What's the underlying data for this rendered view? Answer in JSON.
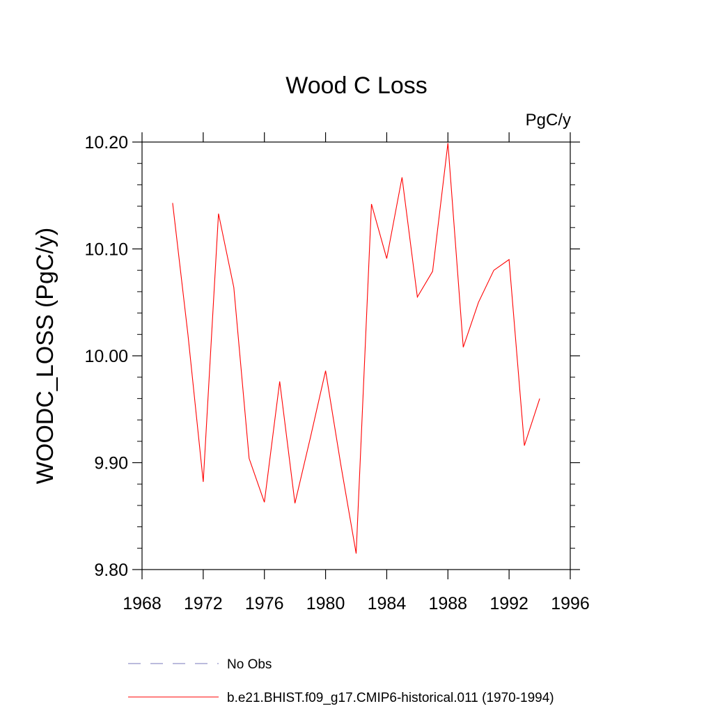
{
  "chart_data": {
    "type": "line",
    "title": "Wood C Loss",
    "units": "PgC/y",
    "ylabel": "WOODC_LOSS  (PgC/y)",
    "xlim": [
      1968,
      1996
    ],
    "ylim": [
      9.8,
      10.2
    ],
    "x_ticks": [
      1968,
      1972,
      1976,
      1980,
      1984,
      1988,
      1992,
      1996
    ],
    "x_tick_labels": [
      "1968",
      "1972",
      "1976",
      "1980",
      "1984",
      "1988",
      "1992",
      "1996"
    ],
    "y_ticks": [
      9.8,
      9.9,
      10.0,
      10.1,
      10.2
    ],
    "y_tick_labels": [
      "9.80",
      "9.90",
      "10.00",
      "10.10",
      "10.20"
    ],
    "grid": false,
    "legend_position": "bottom",
    "series": [
      {
        "name": "b.e21.BHIST.f09_g17.CMIP6-historical.011 (1970-1994)",
        "color": "#ff0000",
        "dash": "solid",
        "x": [
          1970,
          1971,
          1972,
          1973,
          1974,
          1975,
          1976,
          1977,
          1978,
          1979,
          1980,
          1981,
          1982,
          1983,
          1984,
          1985,
          1986,
          1987,
          1988,
          1989,
          1990,
          1991,
          1992,
          1993,
          1994
        ],
        "y": [
          10.143,
          10.02,
          9.882,
          10.133,
          10.064,
          9.904,
          9.863,
          9.976,
          9.862,
          9.923,
          9.986,
          9.898,
          9.815,
          10.142,
          10.091,
          10.167,
          10.055,
          10.079,
          10.199,
          10.008,
          10.05,
          10.08,
          10.09,
          9.916,
          9.96
        ]
      }
    ],
    "legend": [
      {
        "label": "No Obs",
        "color": "#7777bb",
        "dash": "dashed"
      },
      {
        "label": "b.e21.BHIST.f09_g17.CMIP6-historical.011 (1970-1994)",
        "color": "#ff0000",
        "dash": "solid"
      }
    ]
  }
}
